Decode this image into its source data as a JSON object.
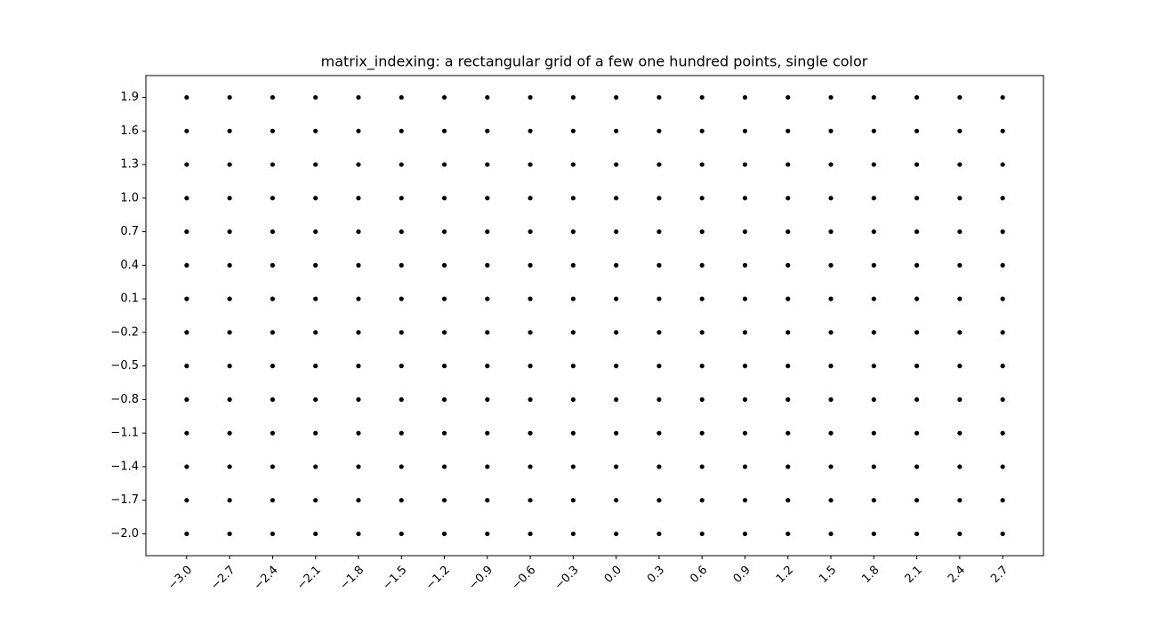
{
  "chart_data": {
    "type": "scatter",
    "title": "matrix_indexing: a rectangular grid of a few one hundred points, single color",
    "color": "#000000",
    "x": [
      -3,
      -3,
      -3,
      -3,
      -3,
      -3,
      -3,
      -3,
      -3,
      -3,
      -3,
      -3,
      -3,
      -3,
      -2.7,
      -2.7,
      -2.7,
      -2.7,
      -2.7,
      -2.7,
      -2.7,
      -2.7,
      -2.7,
      -2.7,
      -2.7,
      -2.7,
      -2.7,
      -2.7,
      -2.4,
      -2.4,
      -2.4,
      -2.4,
      -2.4,
      -2.4,
      -2.4,
      -2.4,
      -2.4,
      -2.4,
      -2.4,
      -2.4,
      -2.4,
      -2.4,
      -2.1,
      -2.1,
      -2.1,
      -2.1,
      -2.1,
      -2.1,
      -2.1,
      -2.1,
      -2.1,
      -2.1,
      -2.1,
      -2.1,
      -2.1,
      -2.1,
      -1.8,
      -1.8,
      -1.8,
      -1.8,
      -1.8,
      -1.8,
      -1.8,
      -1.8,
      -1.8,
      -1.8,
      -1.8,
      -1.8,
      -1.8,
      -1.8,
      -1.5,
      -1.5,
      -1.5,
      -1.5,
      -1.5,
      -1.5,
      -1.5,
      -1.5,
      -1.5,
      -1.5,
      -1.5,
      -1.5,
      -1.5,
      -1.5,
      -1.2,
      -1.2,
      -1.2,
      -1.2,
      -1.2,
      -1.2,
      -1.2,
      -1.2,
      -1.2,
      -1.2,
      -1.2,
      -1.2,
      -1.2,
      -1.2,
      -0.9,
      -0.9,
      -0.9,
      -0.9,
      -0.9,
      -0.9,
      -0.9,
      -0.9,
      -0.9,
      -0.9,
      -0.9,
      -0.9,
      -0.9,
      -0.9,
      -0.6,
      -0.6,
      -0.6,
      -0.6,
      -0.6,
      -0.6,
      -0.6,
      -0.6,
      -0.6,
      -0.6,
      -0.6,
      -0.6,
      -0.6,
      -0.6,
      -0.3,
      -0.3,
      -0.3,
      -0.3,
      -0.3,
      -0.3,
      -0.3,
      -0.3,
      -0.3,
      -0.3,
      -0.3,
      -0.3,
      -0.3,
      -0.3,
      0,
      0,
      0,
      0,
      0,
      0,
      0,
      0,
      0,
      0,
      0,
      0,
      0,
      0,
      0.3,
      0.3,
      0.3,
      0.3,
      0.3,
      0.3,
      0.3,
      0.3,
      0.3,
      0.3,
      0.3,
      0.3,
      0.3,
      0.3,
      0.6,
      0.6,
      0.6,
      0.6,
      0.6,
      0.6,
      0.6,
      0.6,
      0.6,
      0.6,
      0.6,
      0.6,
      0.6,
      0.6,
      0.9,
      0.9,
      0.9,
      0.9,
      0.9,
      0.9,
      0.9,
      0.9,
      0.9,
      0.9,
      0.9,
      0.9,
      0.9,
      0.9,
      1.2,
      1.2,
      1.2,
      1.2,
      1.2,
      1.2,
      1.2,
      1.2,
      1.2,
      1.2,
      1.2,
      1.2,
      1.2,
      1.2,
      1.5,
      1.5,
      1.5,
      1.5,
      1.5,
      1.5,
      1.5,
      1.5,
      1.5,
      1.5,
      1.5,
      1.5,
      1.5,
      1.5,
      1.8,
      1.8,
      1.8,
      1.8,
      1.8,
      1.8,
      1.8,
      1.8,
      1.8,
      1.8,
      1.8,
      1.8,
      1.8,
      1.8,
      2.1,
      2.1,
      2.1,
      2.1,
      2.1,
      2.1,
      2.1,
      2.1,
      2.1,
      2.1,
      2.1,
      2.1,
      2.1,
      2.1,
      2.4,
      2.4,
      2.4,
      2.4,
      2.4,
      2.4,
      2.4,
      2.4,
      2.4,
      2.4,
      2.4,
      2.4,
      2.4,
      2.4,
      2.7,
      2.7,
      2.7,
      2.7,
      2.7,
      2.7,
      2.7,
      2.7,
      2.7,
      2.7,
      2.7,
      2.7,
      2.7,
      2.7
    ],
    "values": [
      -2,
      -1.7,
      -1.4,
      -1.1,
      -0.8,
      -0.5,
      -0.2,
      0.1,
      0.4,
      0.7,
      1,
      1.3,
      1.6,
      1.9,
      -2,
      -1.7,
      -1.4,
      -1.1,
      -0.8,
      -0.5,
      -0.2,
      0.1,
      0.4,
      0.7,
      1,
      1.3,
      1.6,
      1.9,
      -2,
      -1.7,
      -1.4,
      -1.1,
      -0.8,
      -0.5,
      -0.2,
      0.1,
      0.4,
      0.7,
      1,
      1.3,
      1.6,
      1.9,
      -2,
      -1.7,
      -1.4,
      -1.1,
      -0.8,
      -0.5,
      -0.2,
      0.1,
      0.4,
      0.7,
      1,
      1.3,
      1.6,
      1.9,
      -2,
      -1.7,
      -1.4,
      -1.1,
      -0.8,
      -0.5,
      -0.2,
      0.1,
      0.4,
      0.7,
      1,
      1.3,
      1.6,
      1.9,
      -2,
      -1.7,
      -1.4,
      -1.1,
      -0.8,
      -0.5,
      -0.2,
      0.1,
      0.4,
      0.7,
      1,
      1.3,
      1.6,
      1.9,
      -2,
      -1.7,
      -1.4,
      -1.1,
      -0.8,
      -0.5,
      -0.2,
      0.1,
      0.4,
      0.7,
      1,
      1.3,
      1.6,
      1.9,
      -2,
      -1.7,
      -1.4,
      -1.1,
      -0.8,
      -0.5,
      -0.2,
      0.1,
      0.4,
      0.7,
      1,
      1.3,
      1.6,
      1.9,
      -2,
      -1.7,
      -1.4,
      -1.1,
      -0.8,
      -0.5,
      -0.2,
      0.1,
      0.4,
      0.7,
      1,
      1.3,
      1.6,
      1.9,
      -2,
      -1.7,
      -1.4,
      -1.1,
      -0.8,
      -0.5,
      -0.2,
      0.1,
      0.4,
      0.7,
      1,
      1.3,
      1.6,
      1.9,
      -2,
      -1.7,
      -1.4,
      -1.1,
      -0.8,
      -0.5,
      -0.2,
      0.1,
      0.4,
      0.7,
      1,
      1.3,
      1.6,
      1.9,
      -2,
      -1.7,
      -1.4,
      -1.1,
      -0.8,
      -0.5,
      -0.2,
      0.1,
      0.4,
      0.7,
      1,
      1.3,
      1.6,
      1.9,
      -2,
      -1.7,
      -1.4,
      -1.1,
      -0.8,
      -0.5,
      -0.2,
      0.1,
      0.4,
      0.7,
      1,
      1.3,
      1.6,
      1.9,
      -2,
      -1.7,
      -1.4,
      -1.1,
      -0.8,
      -0.5,
      -0.2,
      0.1,
      0.4,
      0.7,
      1,
      1.3,
      1.6,
      1.9,
      -2,
      -1.7,
      -1.4,
      -1.1,
      -0.8,
      -0.5,
      -0.2,
      0.1,
      0.4,
      0.7,
      1,
      1.3,
      1.6,
      1.9,
      -2,
      -1.7,
      -1.4,
      -1.1,
      -0.8,
      -0.5,
      -0.2,
      0.1,
      0.4,
      0.7,
      1,
      1.3,
      1.6,
      1.9,
      -2,
      -1.7,
      -1.4,
      -1.1,
      -0.8,
      -0.5,
      -0.2,
      0.1,
      0.4,
      0.7,
      1,
      1.3,
      1.6,
      1.9,
      -2,
      -1.7,
      -1.4,
      -1.1,
      -0.8,
      -0.5,
      -0.2,
      0.1,
      0.4,
      0.7,
      1,
      1.3,
      1.6,
      1.9,
      -2,
      -1.7,
      -1.4,
      -1.1,
      -0.8,
      -0.5,
      -0.2,
      0.1,
      0.4,
      0.7,
      1,
      1.3,
      1.6,
      1.9,
      -2,
      -1.7,
      -1.4,
      -1.1,
      -0.8,
      -0.5,
      -0.2,
      0.1,
      0.4,
      0.7,
      1,
      1.3,
      1.6,
      1.9
    ],
    "xlim": [
      -3.285,
      2.985
    ],
    "ylim": [
      -2.195,
      2.095
    ],
    "xticks": [
      {
        "value": -3,
        "label": "−3.0"
      },
      {
        "value": -2.7,
        "label": "−2.7"
      },
      {
        "value": -2.4,
        "label": "−2.4"
      },
      {
        "value": -2.1,
        "label": "−2.1"
      },
      {
        "value": -1.8,
        "label": "−1.8"
      },
      {
        "value": -1.5,
        "label": "−1.5"
      },
      {
        "value": -1.2,
        "label": "−1.2"
      },
      {
        "value": -0.9,
        "label": "−0.9"
      },
      {
        "value": -0.6,
        "label": "−0.6"
      },
      {
        "value": -0.3,
        "label": "−0.3"
      },
      {
        "value": 0,
        "label": "0.0"
      },
      0.3,
      0.6,
      0.9,
      1.2,
      1.5,
      1.8,
      2.1,
      2.4,
      2.7
    ],
    "yticks": [
      {
        "value": -2,
        "label": "−2.0"
      },
      {
        "value": -1.7,
        "label": "−1.7"
      },
      {
        "value": -1.4,
        "label": "−1.4"
      },
      {
        "value": -1.1,
        "label": "−1.1"
      },
      {
        "value": -0.8,
        "label": "−0.8"
      },
      {
        "value": -0.5,
        "label": "−0.5"
      },
      {
        "value": -0.2,
        "label": "−0.2"
      },
      0.1,
      0.4,
      0.7,
      {
        "value": 1,
        "label": "1.0"
      },
      1.3,
      1.6,
      1.9
    ]
  }
}
